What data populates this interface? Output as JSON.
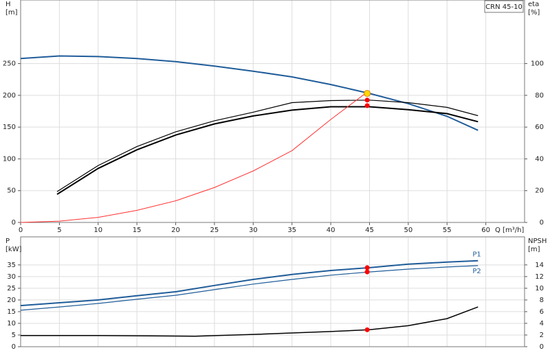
{
  "chart_data": [
    {
      "type": "line",
      "title": "CRN 45-10",
      "ylabel": "H",
      "yunit": "[m]",
      "y2label": "eta",
      "y2unit": "[%]",
      "xlabel": "Q [m³/h]",
      "xlim": [
        0,
        65
      ],
      "xticks": [
        0,
        5,
        10,
        15,
        20,
        25,
        30,
        35,
        40,
        45,
        50,
        55,
        60
      ],
      "ylim": [
        0,
        350
      ],
      "yticks": [
        0,
        50,
        100,
        150,
        200,
        250
      ],
      "y2lim": [
        0,
        140
      ],
      "y2ticks": [
        0,
        20,
        40,
        60,
        80,
        100
      ],
      "grid": true,
      "xtick_labels": true,
      "series": [
        {
          "color": "#1f5c99",
          "width": 2,
          "x": [
            0,
            5,
            10,
            15,
            20,
            25,
            30,
            35,
            40,
            45,
            50,
            55,
            59
          ],
          "values": [
            258,
            262,
            261,
            258,
            253,
            246,
            238,
            229,
            217,
            203,
            187,
            167,
            145
          ]
        },
        {
          "color": "#000000",
          "width": 1.2,
          "axis": "y2",
          "x": [
            4.7,
            10,
            15,
            20,
            25,
            30,
            35,
            40,
            45,
            50,
            55,
            59
          ],
          "values": [
            19.4,
            35.8,
            47.8,
            57,
            64,
            69.4,
            75.4,
            76.7,
            77,
            75.4,
            72.4,
            67.2
          ]
        },
        {
          "color": "#000000",
          "width": 2,
          "axis": "y2",
          "x": [
            4.7,
            10,
            15,
            20,
            25,
            30,
            35,
            40,
            45,
            50,
            55,
            59
          ],
          "values": [
            17.7,
            34,
            45.7,
            55,
            62,
            67,
            70.7,
            72.8,
            72.8,
            71,
            68.5,
            63.4
          ]
        },
        {
          "color": "#ff3030",
          "width": 1,
          "x": [
            0,
            5,
            10,
            15,
            20,
            25,
            30,
            35,
            40,
            44.7
          ],
          "values": [
            0,
            2,
            8,
            19,
            34,
            55,
            81,
            113,
            162,
            205
          ]
        }
      ],
      "points": [
        {
          "x": 44.7,
          "y": 203,
          "color": "#ffd700"
        },
        {
          "x": 44.7,
          "y": 77,
          "axis": "y2",
          "color": "#ff0000"
        },
        {
          "x": 44.7,
          "y": 73.5,
          "axis": "y2",
          "color": "#ff0000"
        }
      ]
    },
    {
      "type": "line",
      "ylabel": "P",
      "yunit": "[kW]",
      "y2label": "NPSH",
      "y2unit": "[m]",
      "xlim": [
        0,
        65
      ],
      "xticks": [
        0,
        5,
        10,
        15,
        20,
        25,
        30,
        35,
        40,
        45,
        50,
        55,
        60
      ],
      "ylim": [
        0,
        47
      ],
      "yticks": [
        0,
        5,
        10,
        15,
        20,
        25,
        30,
        35
      ],
      "y2lim": [
        0,
        18.8
      ],
      "y2ticks": [
        0,
        2,
        4,
        6,
        8,
        10,
        12,
        14
      ],
      "grid": true,
      "xtick_labels": false,
      "series": [
        {
          "name": "P1",
          "color": "#1f5c99",
          "width": 2,
          "x": [
            0,
            5,
            10,
            15,
            20,
            25,
            30,
            35,
            40,
            45,
            50,
            55,
            59
          ],
          "values": [
            17.6,
            18.8,
            20,
            21.8,
            23.5,
            26.2,
            28.8,
            30.9,
            32.6,
            33.8,
            35.3,
            36.2,
            36.8
          ]
        },
        {
          "name": "P2",
          "color": "#1f5c99",
          "width": 1.2,
          "x": [
            0,
            5,
            10,
            15,
            20,
            25,
            30,
            35,
            40,
            45,
            50,
            55,
            59
          ],
          "values": [
            15.6,
            17,
            18.5,
            20.3,
            22,
            24.4,
            26.8,
            28.8,
            30.6,
            32,
            33.2,
            34.1,
            34.7
          ]
        },
        {
          "color": "#000000",
          "width": 1.5,
          "axis": "y2",
          "x": [
            0,
            10,
            22.5,
            30,
            40,
            45,
            50,
            55,
            59
          ],
          "values": [
            1.9,
            1.9,
            1.8,
            2.1,
            2.6,
            2.9,
            3.6,
            4.8,
            6.8
          ]
        }
      ],
      "points": [
        {
          "x": 44.7,
          "y": 33.8,
          "color": "#ff0000"
        },
        {
          "x": 44.7,
          "y": 32,
          "color": "#ff0000"
        },
        {
          "x": 44.7,
          "y": 2.9,
          "axis": "y2",
          "color": "#ff0000"
        }
      ]
    }
  ]
}
